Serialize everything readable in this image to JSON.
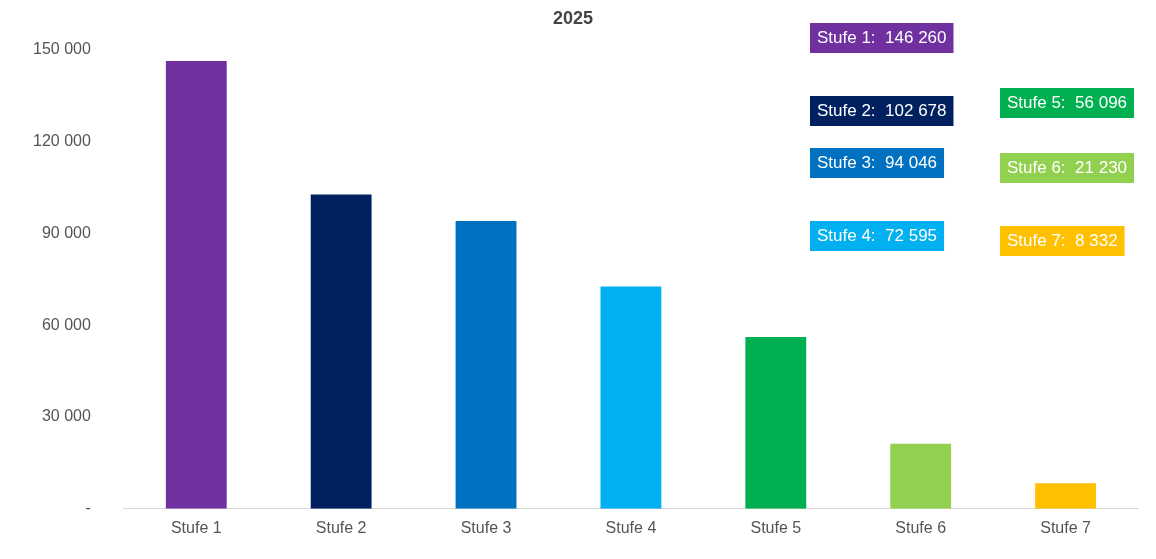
{
  "chart_data": {
    "type": "bar",
    "title": "2025",
    "categories": [
      "Stufe 1",
      "Stufe 2",
      "Stufe 3",
      "Stufe 4",
      "Stufe 5",
      "Stufe 6",
      "Stufe 7"
    ],
    "values": [
      146260,
      102678,
      94046,
      72595,
      56096,
      21230,
      8332
    ],
    "colors": [
      "#7030a0",
      "#002060",
      "#0070c0",
      "#00b0f0",
      "#00b050",
      "#92d050",
      "#ffc000"
    ],
    "ylim": [
      0,
      150000
    ],
    "yticks": [
      {
        "value": 0,
        "label": "-"
      },
      {
        "value": 30000,
        "label": "30 000"
      },
      {
        "value": 60000,
        "label": "60 000"
      },
      {
        "value": 90000,
        "label": "90 000"
      },
      {
        "value": 120000,
        "label": "120 000"
      },
      {
        "value": 150000,
        "label": "150 000"
      }
    ],
    "grid": false,
    "legend": false,
    "annotations": [
      "Stufe 1:  146 260",
      "Stufe 2:  102 678",
      "Stufe 3:  94 046",
      "Stufe 4:  72 595",
      "Stufe 5:  56 096",
      "Stufe 6:  21 230",
      "Stufe 7:  8 332"
    ]
  }
}
